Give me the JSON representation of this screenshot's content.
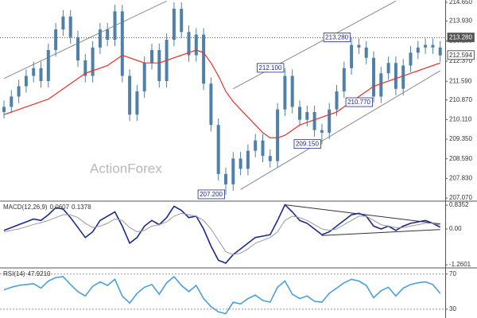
{
  "chart_data": [
    {
      "type": "candlestick",
      "watermark": "ActionForex",
      "color": "#4f81a8",
      "open": [
        210.4,
        210.6,
        211.0,
        211.4,
        211.8,
        212.1,
        211.6,
        212.8,
        213.6,
        214.1,
        213.3,
        212.4,
        211.8,
        212.9,
        213.6,
        213.2,
        214.3,
        211.8,
        210.3,
        211.2,
        212.3,
        212.8,
        211.6,
        213.2,
        214.4,
        213.5,
        212.6,
        213.4,
        211.5,
        209.9,
        208.0,
        207.6,
        208.6,
        208.2,
        208.9,
        209.3,
        208.7,
        208.5,
        210.5,
        211.8,
        210.6,
        210.1,
        210.4,
        209.7,
        209.6,
        210.5,
        211.2,
        212.1,
        213.0,
        212.9,
        212.5,
        211.0,
        211.9,
        212.3,
        211.3,
        212.2,
        212.7,
        212.9,
        213.0,
        212.9
      ],
      "high": [
        210.85,
        211.25,
        211.65,
        212.05,
        212.35,
        212.35,
        213.05,
        213.85,
        214.35,
        214.35,
        213.55,
        212.65,
        213.15,
        213.85,
        213.85,
        214.55,
        214.55,
        212.05,
        211.45,
        212.55,
        213.05,
        213.05,
        213.45,
        214.65,
        214.65,
        213.75,
        213.65,
        213.65,
        211.75,
        210.15,
        208.25,
        208.85,
        208.85,
        209.15,
        209.55,
        209.55,
        208.95,
        210.75,
        212.1,
        212.05,
        210.85,
        210.65,
        210.65,
        209.95,
        210.75,
        211.45,
        212.35,
        213.28,
        213.25,
        213.15,
        212.75,
        212.15,
        212.55,
        212.55,
        212.45,
        212.95,
        213.15,
        213.25,
        213.25,
        213.15
      ],
      "low": [
        210.15,
        210.35,
        210.75,
        211.15,
        211.55,
        211.35,
        211.35,
        212.55,
        213.35,
        213.05,
        212.15,
        211.55,
        211.55,
        212.65,
        212.95,
        212.95,
        211.55,
        210.05,
        210.05,
        210.95,
        212.05,
        211.35,
        211.35,
        212.95,
        213.25,
        212.35,
        212.35,
        211.25,
        209.65,
        207.75,
        207.2,
        207.35,
        207.95,
        207.95,
        208.65,
        208.45,
        208.25,
        208.25,
        210.25,
        210.35,
        209.85,
        209.85,
        209.45,
        209.15,
        209.35,
        210.25,
        210.95,
        211.85,
        212.65,
        212.25,
        210.77,
        210.75,
        211.65,
        211.05,
        211.05,
        211.95,
        212.45,
        212.65,
        212.65,
        212.35
      ],
      "close": [
        210.6,
        211.0,
        211.4,
        211.8,
        212.1,
        211.6,
        212.8,
        213.6,
        214.1,
        213.3,
        212.4,
        211.8,
        212.9,
        213.6,
        213.2,
        214.3,
        211.8,
        210.3,
        211.2,
        212.3,
        212.8,
        211.6,
        213.2,
        214.4,
        213.5,
        212.6,
        213.4,
        211.5,
        209.9,
        208.0,
        207.6,
        208.6,
        208.2,
        208.9,
        209.3,
        208.7,
        208.5,
        210.5,
        211.8,
        210.6,
        210.1,
        210.4,
        209.7,
        209.6,
        210.5,
        211.2,
        212.1,
        213.0,
        212.9,
        212.5,
        211.0,
        211.9,
        212.3,
        211.3,
        212.2,
        212.7,
        212.9,
        213.0,
        212.9,
        212.594
      ],
      "moving_average": {
        "color": "#e8322c",
        "values": [
          210.3,
          210.4,
          210.5,
          210.6,
          210.7,
          210.8,
          210.9,
          211.1,
          211.3,
          211.5,
          211.7,
          211.9,
          212.0,
          212.1,
          212.2,
          212.4,
          212.6,
          212.5,
          212.4,
          212.3,
          212.3,
          212.3,
          212.4,
          212.5,
          212.6,
          212.7,
          212.8,
          212.7,
          212.3,
          211.8,
          211.2,
          210.8,
          210.5,
          210.2,
          209.9,
          209.6,
          209.4,
          209.4,
          209.5,
          209.7,
          209.9,
          210.0,
          210.1,
          210.2,
          210.3,
          210.4,
          210.6,
          210.8,
          211.0,
          211.2,
          211.4,
          211.5,
          211.6,
          211.7,
          211.8,
          211.9,
          212.0,
          212.1,
          212.2,
          212.3
        ]
      },
      "ylim": [
        206.98,
        214.74
      ],
      "yticks": [
        {
          "value": 214.65,
          "label": "214.650"
        },
        {
          "value": 213.93,
          "label": "213.930"
        },
        {
          "value": 213.15,
          "label": "213.150"
        },
        {
          "value": 212.37,
          "label": "212.370"
        },
        {
          "value": 211.59,
          "label": "211.590"
        },
        {
          "value": 210.87,
          "label": "210.870"
        },
        {
          "value": 210.11,
          "label": "210.110"
        },
        {
          "value": 209.35,
          "label": "209.350"
        },
        {
          "value": 208.59,
          "label": "208.590"
        },
        {
          "value": 207.83,
          "label": "207.830"
        },
        {
          "value": 207.07,
          "label": "207.070"
        }
      ],
      "reference_line": {
        "value": 213.28,
        "label": "213.280"
      },
      "annotations": [
        {
          "index": 30,
          "value": 207.2,
          "label": "207.200"
        },
        {
          "index": 38,
          "value": 212.1,
          "label": "212.100"
        },
        {
          "index": 43,
          "value": 209.15,
          "label": "209.150"
        },
        {
          "index": 47,
          "value": 213.28,
          "label": "213.280"
        },
        {
          "index": 50,
          "value": 210.77,
          "label": "210.770"
        }
      ],
      "trendline_color": "#8a8a8a",
      "trendlines": [
        {
          "index": [
            0,
            22
          ],
          "values": [
            211.7,
            214.7
          ]
        },
        {
          "index": [
            31,
            53
          ],
          "values": [
            211.3,
            214.7
          ]
        },
        {
          "index": [
            32,
            59
          ],
          "values": [
            207.4,
            212.0
          ]
        }
      ]
    },
    {
      "type": "line",
      "label": "MACD(12,26,9)",
      "series": [
        {
          "color": "#1c2a8c",
          "values": [
            -0.05,
            0.05,
            0.15,
            0.25,
            0.35,
            0.3,
            0.5,
            0.75,
            0.7,
            0.4,
            0.05,
            -0.3,
            -0.1,
            0.3,
            0.45,
            0.6,
            0.1,
            -0.5,
            -0.3,
            0.1,
            0.3,
            0.15,
            0.4,
            0.8,
            0.65,
            0.4,
            0.45,
            0.0,
            -0.6,
            -1.1,
            -1.2,
            -0.9,
            -0.7,
            -0.5,
            -0.3,
            -0.25,
            -0.2,
            0.3,
            0.85,
            0.6,
            0.3,
            0.2,
            0.0,
            -0.2,
            -0.1,
            0.1,
            0.3,
            0.5,
            0.55,
            0.45,
            0.1,
            0.0,
            0.1,
            -0.05,
            0.1,
            0.2,
            0.25,
            0.3,
            0.2,
            0.0607
          ]
        },
        {
          "color": "#9a9a9a",
          "values": [
            -0.1,
            -0.05,
            0.0,
            0.08,
            0.16,
            0.22,
            0.3,
            0.4,
            0.5,
            0.5,
            0.4,
            0.2,
            0.05,
            0.1,
            0.2,
            0.35,
            0.3,
            0.05,
            -0.1,
            -0.05,
            0.1,
            0.15,
            0.25,
            0.45,
            0.55,
            0.5,
            0.45,
            0.3,
            0.0,
            -0.4,
            -0.8,
            -0.9,
            -0.85,
            -0.7,
            -0.5,
            -0.4,
            -0.3,
            -0.1,
            0.3,
            0.45,
            0.4,
            0.3,
            0.15,
            0.0,
            -0.05,
            0.0,
            0.15,
            0.3,
            0.45,
            0.45,
            0.3,
            0.15,
            0.1,
            0.05,
            0.05,
            0.1,
            0.15,
            0.2,
            0.2,
            0.1378
          ]
        }
      ],
      "ylim": [
        -1.34,
        0.95
      ],
      "yticks": [
        0.8352,
        {
          "value": 0,
          "label": "0.00"
        },
        -1.2601
      ],
      "trendline_color": "#333333",
      "trendlines": [
        {
          "index": [
            38,
            59
          ],
          "values": [
            0.85,
            0.18
          ]
        },
        {
          "index": [
            43,
            59
          ],
          "values": [
            -0.23,
            -0.02
          ]
        }
      ]
    },
    {
      "type": "line",
      "label": "RSI(14)",
      "readout_label": "47.9210",
      "series": [
        {
          "color": "#4a9fdc",
          "values": [
            52,
            55,
            57,
            58,
            59,
            54,
            62,
            66,
            67,
            58,
            50,
            45,
            56,
            61,
            57,
            64,
            45,
            37,
            48,
            55,
            58,
            47,
            60,
            67,
            57,
            50,
            57,
            42,
            33,
            27,
            25,
            38,
            36,
            42,
            46,
            40,
            38,
            55,
            62,
            47,
            42,
            45,
            39,
            38,
            48,
            54,
            60,
            64,
            62,
            57,
            43,
            51,
            55,
            45,
            54,
            58,
            60,
            61,
            58,
            47.921
          ]
        }
      ],
      "ylim": [
        20,
        76
      ],
      "yticks": [
        70,
        30
      ],
      "grid": true
    }
  ]
}
